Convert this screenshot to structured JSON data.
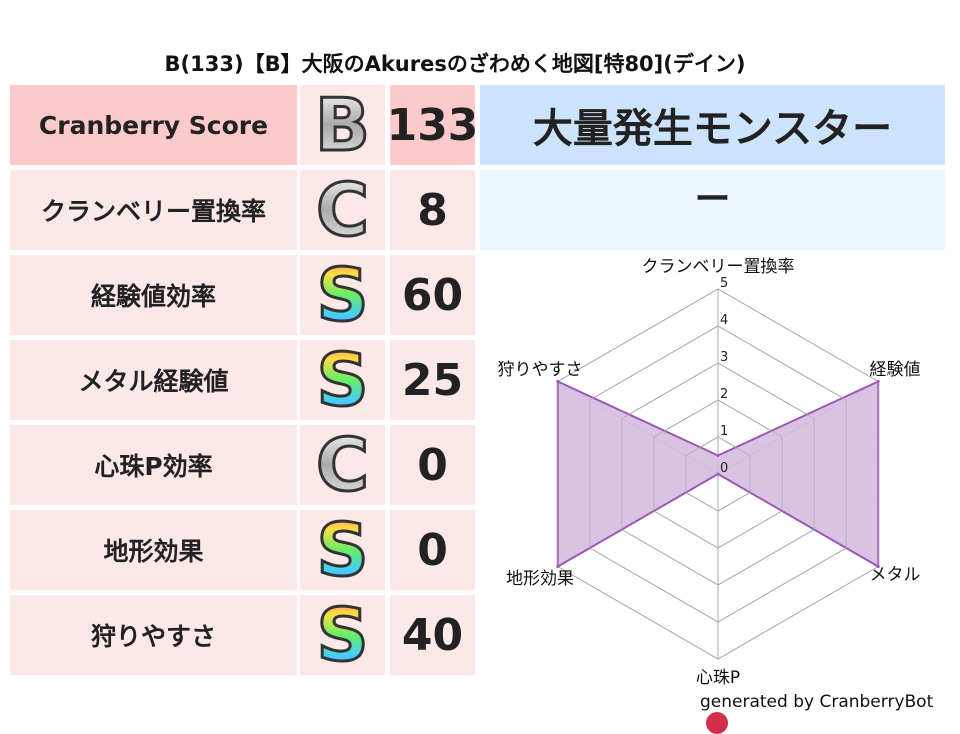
{
  "title": "B(133)【B】大阪のAkuresのざわめく地図[特80](デイン)",
  "rows": [
    {
      "label": "Cranberry Score",
      "grade": "B",
      "score": "133"
    },
    {
      "label": "クランベリー置換率",
      "grade": "C",
      "score": "8"
    },
    {
      "label": "経験値効率",
      "grade": "S",
      "score": "60"
    },
    {
      "label": "メタル経験値",
      "grade": "S",
      "score": "25"
    },
    {
      "label": "心珠P効率",
      "grade": "C",
      "score": "0"
    },
    {
      "label": "地形効果",
      "grade": "S",
      "score": "0"
    },
    {
      "label": "狩りやすさ",
      "grade": "S",
      "score": "40"
    }
  ],
  "monster_header": "大量発生モンスター",
  "monster_value": "ー",
  "footer": "generated by CranberryBot",
  "chart_data": {
    "type": "radar",
    "categories": [
      "クランベリー置換率",
      "経験値",
      "メタル",
      "心珠P",
      "地形効果",
      "狩りやすさ"
    ],
    "values": [
      0.5,
      5,
      5,
      0,
      5,
      5
    ],
    "rlim": [
      0,
      5
    ],
    "ticks": [
      "0",
      "1",
      "2",
      "3",
      "4",
      "5"
    ],
    "fill_color": "#d6bbe0",
    "line_color": "#9b59b6"
  }
}
